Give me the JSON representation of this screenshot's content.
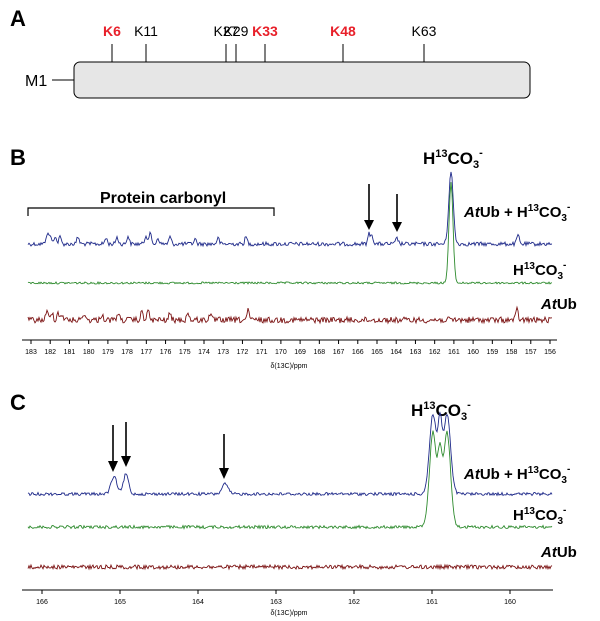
{
  "panel_a": {
    "letter": "A",
    "chain_label": "M1",
    "lysines": [
      {
        "label": "K6",
        "highlight": true
      },
      {
        "label": "K11",
        "highlight": false
      },
      {
        "label": "K27",
        "highlight": false
      },
      {
        "label": "K29",
        "highlight": false
      },
      {
        "label": "K33",
        "highlight": true
      },
      {
        "label": "K48",
        "highlight": true
      },
      {
        "label": "K63",
        "highlight": false
      }
    ]
  },
  "panel_b": {
    "letter": "B",
    "bracket_label": "Protein carbonyl",
    "peak_label_base": "H",
    "peak_label_sup": "13",
    "peak_label_rest": "CO",
    "peak_label_sub": "3",
    "peak_label_sup2": "-",
    "trace_labels": {
      "top": {
        "italic": "At",
        "rest": "Ub + H",
        "sup": "13",
        "rest2": "CO",
        "sub": "3",
        "sup2": "-"
      },
      "mid": {
        "base": "H",
        "sup": "13",
        "rest": "CO",
        "sub": "3",
        "sup2": "-"
      },
      "bottom": {
        "italic": "At",
        "rest": "Ub"
      }
    },
    "xaxis_label": "δ(13C)/ppm",
    "ticks": [
      "183",
      "182",
      "181",
      "180",
      "179",
      "178",
      "177",
      "176",
      "175",
      "174",
      "173",
      "172",
      "171",
      "170",
      "169",
      "168",
      "167",
      "166",
      "165",
      "164",
      "163",
      "162",
      "161",
      "160",
      "159",
      "158",
      "157",
      "156"
    ]
  },
  "panel_c": {
    "letter": "C",
    "peak_label_base": "H",
    "peak_label_sup": "13",
    "peak_label_rest": "CO",
    "peak_label_sub": "3",
    "peak_label_sup2": "-",
    "trace_labels": {
      "top": {
        "italic": "At",
        "rest": "Ub + H",
        "sup": "13",
        "rest2": "CO",
        "sub": "3",
        "sup2": "-"
      },
      "mid": {
        "base": "H",
        "sup": "13",
        "rest": "CO",
        "sub": "3",
        "sup2": "-"
      },
      "bottom": {
        "italic": "At",
        "rest": "Ub"
      }
    },
    "xaxis_label": "δ(13C)/ppm",
    "ticks": [
      "166",
      "165",
      "164",
      "163",
      "162",
      "161",
      "160"
    ]
  },
  "colors": {
    "highlight": "#e8202a",
    "blue_trace": "#1f2a8a",
    "green_trace": "#2e8b2e",
    "red_trace": "#7a1010",
    "bar_fill": "#e6e6e6"
  }
}
